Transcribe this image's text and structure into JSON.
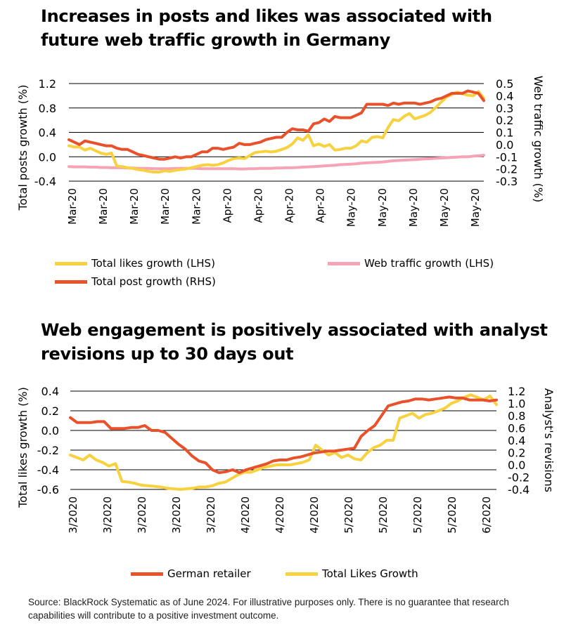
{
  "source_note": "Source: BlackRock Systematic as of June 2024. For illustrative purposes only. There is no guarantee that research capabilities will contribute to a positive investment outcome.",
  "chart_data": [
    {
      "type": "line",
      "title": "Increases in posts and likes was associated with future web traffic growth in Germany",
      "ylabel": "Total posts growth (%)",
      "y2label": "Web traffic growth (%)",
      "ylim": [
        -0.4,
        1.2
      ],
      "y2lim": [
        -0.3,
        0.5
      ],
      "yticks": [
        "1.2",
        "0.8",
        "0.4",
        "0.0",
        "-0.4"
      ],
      "y2ticks": [
        "0.5",
        "0.4",
        "0.3",
        "0.2",
        "0.1",
        "0.0",
        "-0.1",
        "-0.2",
        "-0.3"
      ],
      "x_tick_labels": [
        "Mar-20",
        "Mar-20",
        "Mar-20",
        "Mar-20",
        "Mar-20",
        "Apr-20",
        "Apr-20",
        "Apr-20",
        "Apr-20",
        "May-20",
        "May-20",
        "May-20",
        "May-20",
        "May-20"
      ],
      "grid": true,
      "legend_position": "bottom",
      "series": [
        {
          "name": "Total likes growth (LHS)",
          "axis": "left",
          "color": "#f7d23e",
          "y": [
            0.18,
            0.16,
            0.16,
            0.11,
            0.14,
            0.1,
            0.06,
            0.04,
            0.06,
            -0.15,
            -0.16,
            -0.18,
            -0.19,
            -0.21,
            -0.22,
            -0.24,
            -0.25,
            -0.25,
            -0.23,
            -0.24,
            -0.22,
            -0.21,
            -0.2,
            -0.18,
            -0.16,
            -0.14,
            -0.13,
            -0.14,
            -0.13,
            -0.1,
            -0.06,
            -0.03,
            -0.02,
            -0.03,
            0.02,
            0.07,
            0.08,
            0.09,
            0.08,
            0.09,
            0.12,
            0.15,
            0.21,
            0.31,
            0.27,
            0.36,
            0.18,
            0.21,
            0.17,
            0.2,
            0.11,
            0.12,
            0.14,
            0.14,
            0.18,
            0.26,
            0.24,
            0.32,
            0.33,
            0.31,
            0.48,
            0.61,
            0.59,
            0.66,
            0.71,
            0.62,
            0.65,
            0.68,
            0.73,
            0.81,
            0.9,
            0.98,
            1.02,
            1.06,
            1.03,
            1.01,
            1.0,
            1.07,
            0.96
          ]
        },
        {
          "name": "Web traffic growth (LHS)",
          "axis": "left",
          "color": "#f5a3b5",
          "y": [
            -0.16,
            -0.165,
            -0.165,
            -0.165,
            -0.17,
            -0.17,
            -0.175,
            -0.175,
            -0.18,
            -0.18,
            -0.18,
            -0.185,
            -0.185,
            -0.19,
            -0.19,
            -0.19,
            -0.195,
            -0.195,
            -0.195,
            -0.195,
            -0.19,
            -0.19,
            -0.19,
            -0.19,
            -0.19,
            -0.195,
            -0.195,
            -0.195,
            -0.195,
            -0.195,
            -0.195,
            -0.195,
            -0.2,
            -0.2,
            -0.195,
            -0.195,
            -0.19,
            -0.19,
            -0.19,
            -0.185,
            -0.185,
            -0.18,
            -0.18,
            -0.175,
            -0.17,
            -0.165,
            -0.16,
            -0.155,
            -0.15,
            -0.145,
            -0.14,
            -0.13,
            -0.125,
            -0.12,
            -0.115,
            -0.105,
            -0.1,
            -0.095,
            -0.09,
            -0.085,
            -0.075,
            -0.065,
            -0.06,
            -0.055,
            -0.05,
            -0.045,
            -0.04,
            -0.035,
            -0.03,
            -0.025,
            -0.02,
            -0.015,
            -0.01,
            -0.005,
            0.0,
            0.0,
            0.01,
            0.015,
            0.025
          ]
        },
        {
          "name": "Total post growth (RHS)",
          "axis": "right",
          "color": "#e8512a",
          "y": [
            0.04,
            0.02,
            0.0,
            0.03,
            0.02,
            0.01,
            0.0,
            -0.01,
            -0.01,
            -0.03,
            -0.04,
            -0.04,
            -0.06,
            -0.08,
            -0.09,
            -0.1,
            -0.11,
            -0.12,
            -0.12,
            -0.11,
            -0.1,
            -0.11,
            -0.1,
            -0.1,
            -0.08,
            -0.06,
            -0.06,
            -0.03,
            -0.03,
            -0.04,
            -0.03,
            -0.02,
            0.01,
            0.0,
            0.0,
            0.01,
            0.02,
            0.04,
            0.05,
            0.06,
            0.06,
            0.1,
            0.13,
            0.12,
            0.12,
            0.11,
            0.17,
            0.18,
            0.21,
            0.19,
            0.23,
            0.22,
            0.22,
            0.22,
            0.24,
            0.26,
            0.33,
            0.33,
            0.33,
            0.33,
            0.32,
            0.34,
            0.33,
            0.34,
            0.34,
            0.34,
            0.33,
            0.34,
            0.35,
            0.37,
            0.38,
            0.4,
            0.42,
            0.42,
            0.42,
            0.44,
            0.43,
            0.42,
            0.36
          ]
        }
      ]
    },
    {
      "type": "line",
      "title": "Web engagement is positively associated with analyst revisions up to 30 days out",
      "ylabel": "Total likes growth (%)",
      "y2label": "Analyst's revisions",
      "ylim": [
        -0.6,
        0.4
      ],
      "y2lim": [
        -0.4,
        1.2
      ],
      "yticks": [
        "0.4",
        "0.2",
        "0.0",
        "-0.2",
        "-0.4",
        "-0.6"
      ],
      "y2ticks": [
        "1.2",
        "1.0",
        "0.8",
        "0.6",
        "0.4",
        "0.2",
        "0.0",
        "-0.2",
        "-0.4"
      ],
      "x_tick_labels": [
        "3/2020",
        "3/2020",
        "3/2020",
        "3/2020",
        "3/2020",
        "4/2020",
        "4/2020",
        "4/2020",
        "5/2020",
        "5/2020",
        "5/2020",
        "5/2020",
        "6/2020"
      ],
      "grid": true,
      "legend_position": "bottom",
      "series": [
        {
          "name": "German retailer",
          "axis": "left",
          "color": "#e8512a",
          "y": [
            0.13,
            0.08,
            0.08,
            0.08,
            0.09,
            0.09,
            0.02,
            0.02,
            0.02,
            0.03,
            0.03,
            0.05,
            0.0,
            0.0,
            -0.02,
            -0.08,
            -0.14,
            -0.19,
            -0.26,
            -0.31,
            -0.33,
            -0.4,
            -0.43,
            -0.42,
            -0.4,
            -0.43,
            -0.4,
            -0.38,
            -0.36,
            -0.34,
            -0.31,
            -0.3,
            -0.3,
            -0.28,
            -0.27,
            -0.25,
            -0.23,
            -0.22,
            -0.21,
            -0.21,
            -0.2,
            -0.19,
            -0.18,
            -0.06,
            0.0,
            0.05,
            0.15,
            0.25,
            0.27,
            0.29,
            0.3,
            0.32,
            0.32,
            0.31,
            0.32,
            0.33,
            0.34,
            0.33,
            0.33,
            0.31,
            0.31,
            0.31,
            0.3,
            0.31
          ]
        },
        {
          "name": "Total Likes Growth",
          "axis": "right",
          "color": "#f7d23e",
          "y": [
            0.16,
            0.12,
            0.08,
            0.16,
            0.08,
            0.04,
            -0.02,
            0.02,
            -0.27,
            -0.28,
            -0.3,
            -0.33,
            -0.34,
            -0.35,
            -0.36,
            -0.38,
            -0.39,
            -0.4,
            -0.39,
            -0.38,
            -0.36,
            -0.36,
            -0.34,
            -0.3,
            -0.28,
            -0.22,
            -0.16,
            -0.12,
            -0.12,
            -0.08,
            -0.04,
            -0.02,
            0.0,
            0.0,
            0.0,
            0.02,
            0.04,
            0.08,
            0.32,
            0.24,
            0.16,
            0.2,
            0.12,
            0.16,
            0.1,
            0.08,
            0.2,
            0.28,
            0.32,
            0.4,
            0.4,
            0.76,
            0.8,
            0.84,
            0.76,
            0.82,
            0.84,
            0.88,
            0.92,
            1.0,
            1.04,
            1.1,
            1.14,
            1.1,
            1.06,
            1.12,
            0.98
          ]
        }
      ]
    }
  ]
}
